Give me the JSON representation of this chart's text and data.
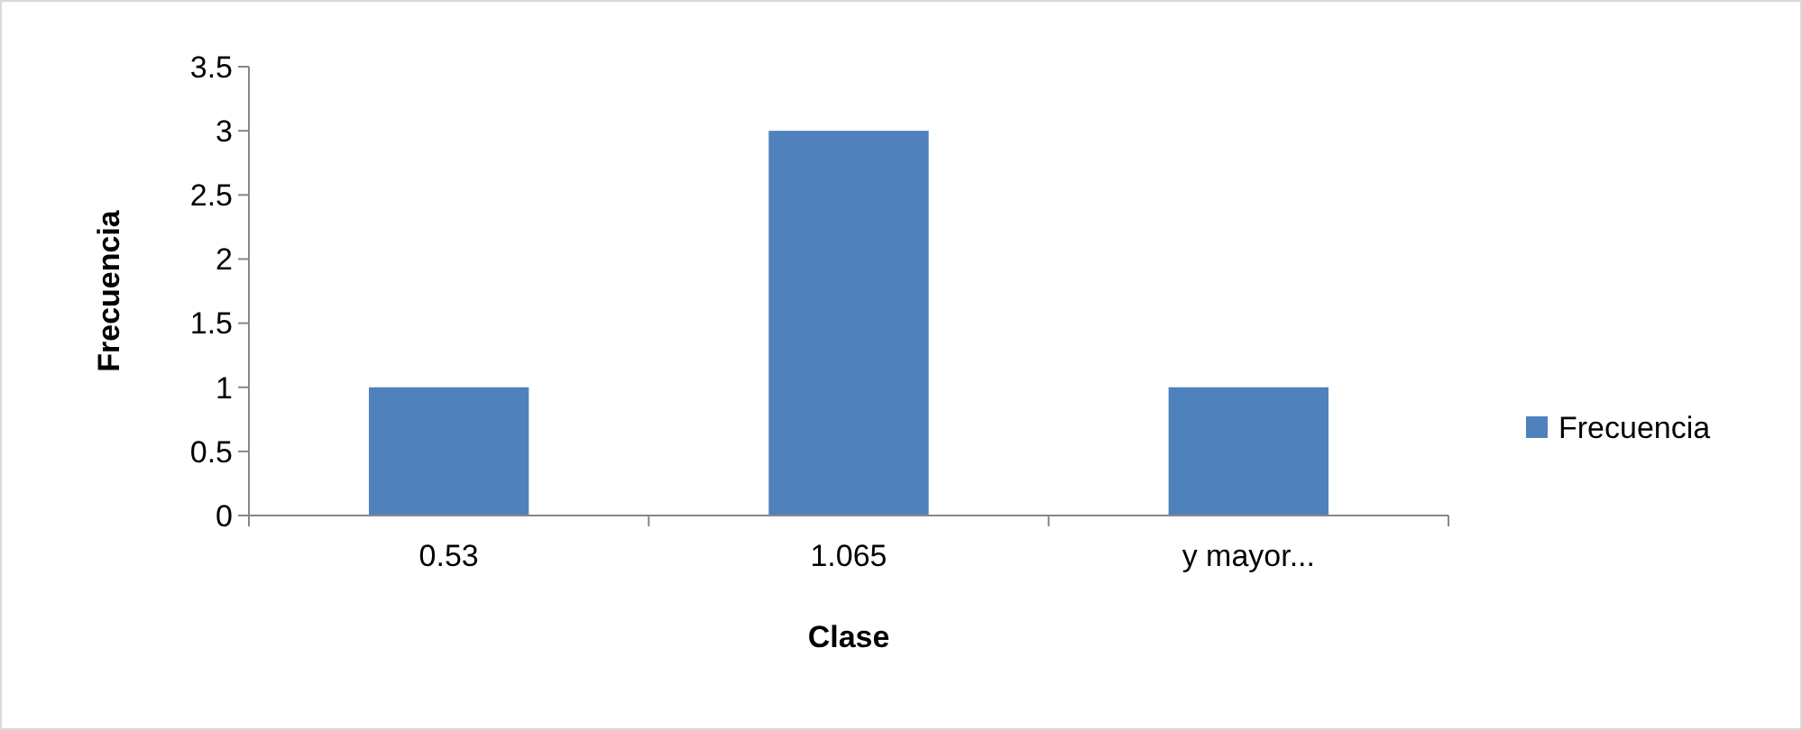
{
  "chart_data": {
    "type": "bar",
    "xlabel": "Clase",
    "ylabel": "Frecuencia",
    "categories": [
      "0.53",
      "1.065",
      "y mayor..."
    ],
    "series": [
      {
        "name": "Frecuencia",
        "color": "#4f81bd",
        "values": [
          1,
          3,
          1
        ]
      }
    ],
    "ylim": [
      0,
      3.5
    ],
    "yticks": [
      0,
      0.5,
      1,
      1.5,
      2,
      2.5,
      3,
      3.5
    ],
    "legend": "right",
    "grid": false
  }
}
